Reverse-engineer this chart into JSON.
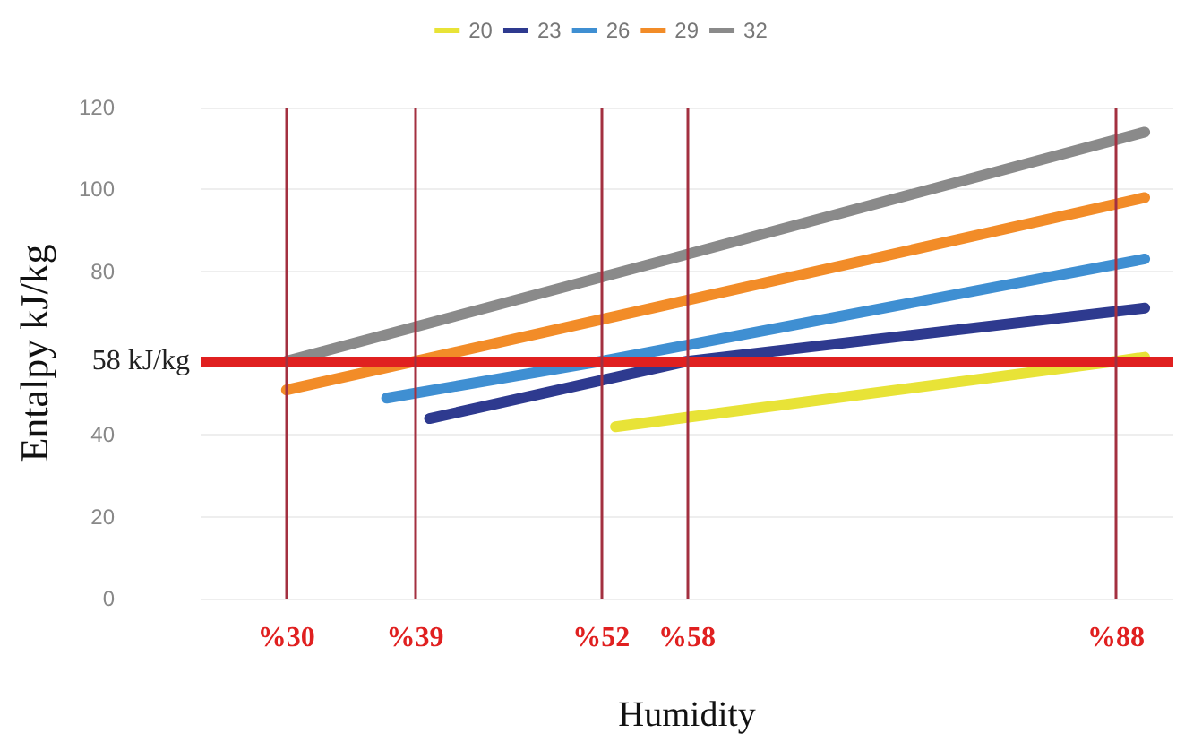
{
  "chart_data": {
    "type": "line",
    "xlabel": "Humidity",
    "ylabel": "Entalpy kJ/kg",
    "xlim": [
      24,
      92
    ],
    "ylim": [
      0,
      120
    ],
    "yticks": [
      0,
      20,
      40,
      80,
      100,
      120
    ],
    "tick_labels": "y",
    "grid": "y",
    "legend": "top",
    "series": [
      {
        "name": "20",
        "color": "#e8e337",
        "x": [
          53,
          88,
          90
        ],
        "values": [
          42,
          58,
          59
        ]
      },
      {
        "name": "23",
        "color": "#2e3a8f",
        "x": [
          40,
          58,
          90
        ],
        "values": [
          44,
          58,
          71
        ]
      },
      {
        "name": "26",
        "color": "#3f8fd2",
        "x": [
          37,
          52,
          90
        ],
        "values": [
          49,
          58,
          83
        ]
      },
      {
        "name": "29",
        "color": "#f28c28",
        "x": [
          30,
          39,
          90
        ],
        "values": [
          51,
          58,
          98
        ]
      },
      {
        "name": "32",
        "color": "#8a8a8a",
        "x": [
          30,
          90
        ],
        "values": [
          58,
          114
        ]
      }
    ],
    "ref_lines": [
      {
        "axis": "y",
        "value": 58,
        "label": "58 kJ/kg",
        "color": "#e02020"
      },
      {
        "axis": "x",
        "value": 30,
        "label": "%30",
        "color": "#a33040"
      },
      {
        "axis": "x",
        "value": 39,
        "label": "%39",
        "color": "#a33040"
      },
      {
        "axis": "x",
        "value": 52,
        "label": "%52",
        "color": "#a33040"
      },
      {
        "axis": "x",
        "value": 58,
        "label": "%58",
        "color": "#a33040"
      },
      {
        "axis": "x",
        "value": 88,
        "label": "%88",
        "color": "#a33040"
      }
    ]
  }
}
